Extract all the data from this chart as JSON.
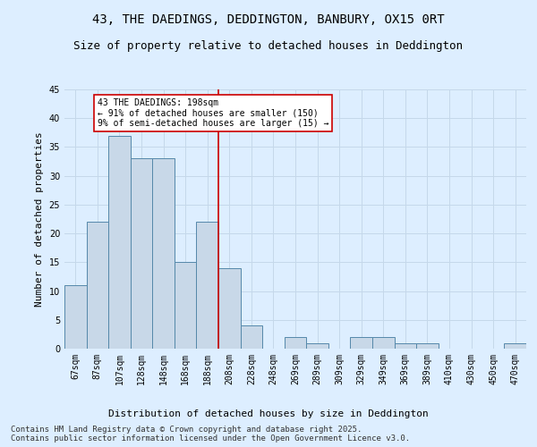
{
  "title1": "43, THE DAEDINGS, DEDDINGTON, BANBURY, OX15 0RT",
  "title2": "Size of property relative to detached houses in Deddington",
  "xlabel": "Distribution of detached houses by size in Deddington",
  "ylabel": "Number of detached properties",
  "categories": [
    "67sqm",
    "87sqm",
    "107sqm",
    "128sqm",
    "148sqm",
    "168sqm",
    "188sqm",
    "208sqm",
    "228sqm",
    "248sqm",
    "269sqm",
    "289sqm",
    "309sqm",
    "329sqm",
    "349sqm",
    "369sqm",
    "389sqm",
    "410sqm",
    "430sqm",
    "450sqm",
    "470sqm"
  ],
  "values": [
    11,
    22,
    37,
    33,
    33,
    15,
    22,
    14,
    4,
    0,
    2,
    1,
    0,
    2,
    2,
    1,
    1,
    0,
    0,
    0,
    1
  ],
  "bar_color": "#c8d8e8",
  "bar_edge_color": "#5588aa",
  "grid_color": "#c5d8ea",
  "bg_color": "#ddeeff",
  "vline_color": "#cc0000",
  "vline_index": 7,
  "annotation_title": "43 THE DAEDINGS: 198sqm",
  "annotation_line1": "← 91% of detached houses are smaller (150)",
  "annotation_line2": "9% of semi-detached houses are larger (15) →",
  "annotation_box_color": "#ffffff",
  "annotation_box_edge_color": "#cc0000",
  "ylim": [
    0,
    45
  ],
  "yticks": [
    0,
    5,
    10,
    15,
    20,
    25,
    30,
    35,
    40,
    45
  ],
  "footer": "Contains HM Land Registry data © Crown copyright and database right 2025.\nContains public sector information licensed under the Open Government Licence v3.0.",
  "title_fontsize": 10,
  "subtitle_fontsize": 9,
  "axis_label_fontsize": 8,
  "tick_fontsize": 7,
  "annotation_fontsize": 7,
  "footer_fontsize": 6.5
}
